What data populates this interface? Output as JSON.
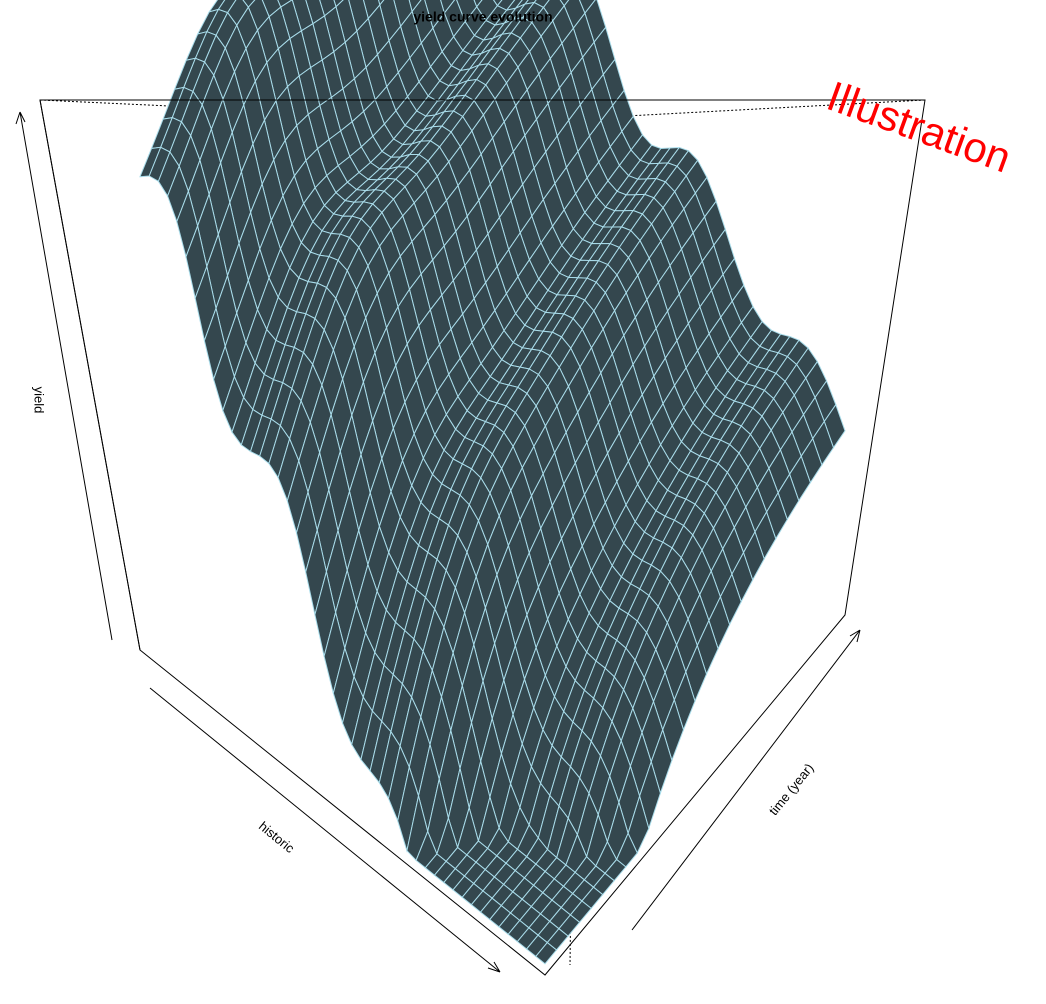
{
  "chart_data": {
    "type": "surface",
    "title": "yield curve evolution",
    "xlabel": "historic",
    "ylabel": "time (year)",
    "zlabel": "yield",
    "annotation": "Illustration",
    "surface_color": "#34474e",
    "mesh_color": "#a9dcea",
    "annotation_color": "#ff0000"
  }
}
